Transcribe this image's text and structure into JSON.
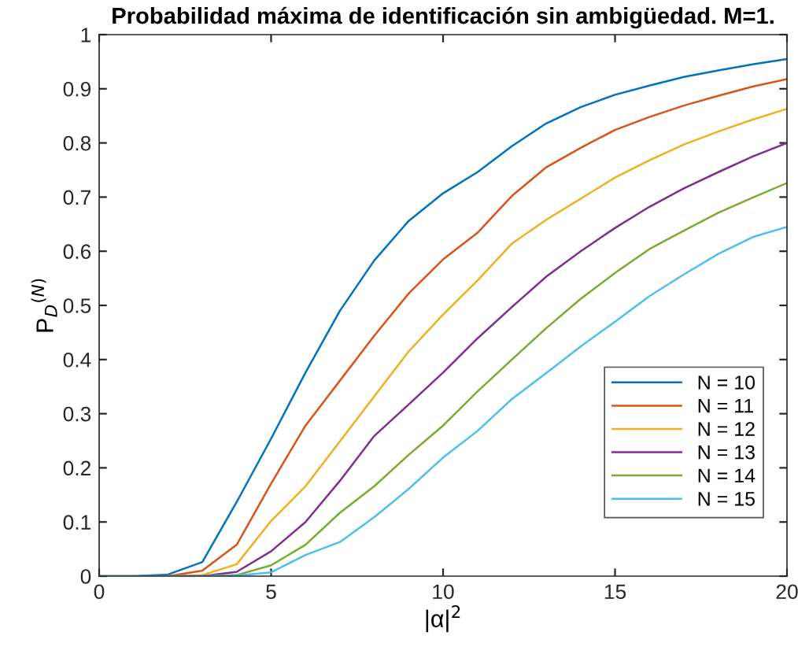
{
  "chart_data": {
    "type": "line",
    "title": "Probabilidad máxima de identificación sin ambigüedad. M=1.",
    "xlabel": "|α|$^{2}$",
    "ylabel": "P$_{D}$$^{(N)}$",
    "x": [
      0,
      1,
      2,
      3,
      4,
      5,
      6,
      7,
      8,
      9,
      10,
      11,
      12,
      13,
      14,
      15,
      16,
      17,
      18,
      19,
      20
    ],
    "series": [
      {
        "name": "N = 10",
        "color": "#0072bd",
        "values": [
          0,
          0,
          0.003,
          0.026,
          0.137,
          0.254,
          0.376,
          0.49,
          0.583,
          0.656,
          0.707,
          0.746,
          0.794,
          0.836,
          0.866,
          0.889,
          0.906,
          0.922,
          0.934,
          0.945,
          0.955
        ]
      },
      {
        "name": "N = 11",
        "color": "#d95319",
        "values": [
          0,
          0,
          0,
          0.01,
          0.058,
          0.171,
          0.278,
          0.361,
          0.444,
          0.522,
          0.585,
          0.634,
          0.702,
          0.755,
          0.791,
          0.824,
          0.848,
          0.869,
          0.887,
          0.904,
          0.918
        ]
      },
      {
        "name": "N = 12",
        "color": "#edb120",
        "values": [
          null,
          null,
          0,
          0.002,
          0.022,
          0.102,
          0.166,
          0.249,
          0.332,
          0.415,
          0.483,
          0.546,
          0.614,
          0.658,
          0.697,
          0.736,
          0.768,
          0.797,
          0.821,
          0.843,
          0.863
        ]
      },
      {
        "name": "N = 13",
        "color": "#7e2f8e",
        "values": [
          null,
          null,
          0,
          0,
          0.008,
          0.046,
          0.1,
          0.176,
          0.259,
          0.317,
          0.376,
          0.439,
          0.497,
          0.553,
          0.6,
          0.643,
          0.682,
          0.716,
          0.746,
          0.775,
          0.8
        ]
      },
      {
        "name": "N = 14",
        "color": "#77ac30",
        "values": [
          null,
          null,
          null,
          0,
          0.002,
          0.02,
          0.058,
          0.117,
          0.166,
          0.224,
          0.278,
          0.341,
          0.4,
          0.458,
          0.512,
          0.56,
          0.604,
          0.638,
          0.671,
          0.699,
          0.726
        ]
      },
      {
        "name": "N = 15",
        "color": "#4dbeee",
        "values": [
          0,
          0,
          0,
          0,
          0.001,
          0.007,
          0.039,
          0.063,
          0.109,
          0.161,
          0.219,
          0.268,
          0.327,
          0.375,
          0.424,
          0.47,
          0.517,
          0.557,
          0.595,
          0.626,
          0.645
        ]
      }
    ],
    "xlim": [
      0,
      20
    ],
    "xticks": [
      0,
      5,
      10,
      15,
      20
    ],
    "ylim": [
      0,
      1
    ],
    "yticks": [
      0,
      0.1,
      0.2,
      0.3,
      0.4,
      0.5,
      0.6,
      0.7,
      0.8,
      0.9,
      1
    ],
    "grid": false,
    "legend": "bottom right",
    "marker": "none",
    "line_style": "solid"
  }
}
